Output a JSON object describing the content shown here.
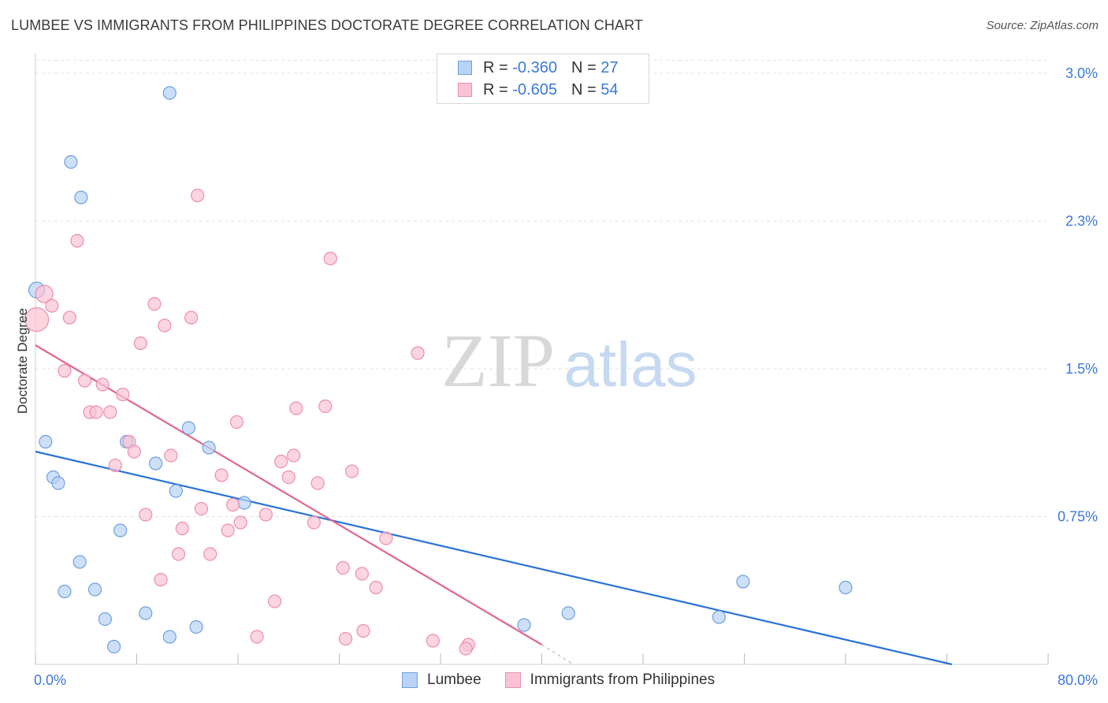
{
  "header": {
    "title": "LUMBEE VS IMMIGRANTS FROM PHILIPPINES DOCTORATE DEGREE CORRELATION CHART",
    "source": "Source: ZipAtlas.com"
  },
  "watermark": {
    "zip": "ZIP",
    "atlas": "atlas"
  },
  "legend": {
    "rows": [
      {
        "r_label": "R =",
        "r_value": "-0.360",
        "n_label": "N =",
        "n_value": "27"
      },
      {
        "r_label": "R =",
        "r_value": "-0.605",
        "n_label": "N =",
        "n_value": "54"
      }
    ]
  },
  "chart_data": {
    "type": "scatter",
    "title": "LUMBEE VS IMMIGRANTS FROM PHILIPPINES DOCTORATE DEGREE CORRELATION CHART",
    "xlabel": "",
    "ylabel": "Doctorate Degree",
    "xlim": [
      0,
      80
    ],
    "ylim": [
      0,
      3.1
    ],
    "x_tick_labels": [
      "0.0%",
      "80.0%"
    ],
    "y_ticks": [
      0.75,
      1.5,
      2.25,
      3.0
    ],
    "y_tick_labels": [
      "0.75%",
      "1.5%",
      "2.3%",
      "3.0%"
    ],
    "grid": true,
    "legend_position": "top-center",
    "colors": {
      "lumbee_fill": "#b8d3f5",
      "lumbee_stroke": "#6f9fe0",
      "lumbee_line": "#2a72d5",
      "phil_fill": "#fac3d3",
      "phil_stroke": "#ec8fae",
      "phil_line": "#e0668f"
    },
    "series": [
      {
        "name": "Lumbee",
        "points": [
          [
            10.6,
            2.9
          ],
          [
            2.8,
            2.55
          ],
          [
            3.6,
            2.37
          ],
          [
            0.1,
            1.9
          ],
          [
            0.8,
            1.13
          ],
          [
            1.4,
            0.95
          ],
          [
            1.8,
            0.92
          ],
          [
            7.2,
            1.13
          ],
          [
            9.5,
            1.02
          ],
          [
            12.1,
            1.2
          ],
          [
            13.7,
            1.1
          ],
          [
            11.1,
            0.88
          ],
          [
            16.5,
            0.82
          ],
          [
            6.7,
            0.68
          ],
          [
            3.5,
            0.52
          ],
          [
            2.3,
            0.37
          ],
          [
            4.7,
            0.38
          ],
          [
            5.5,
            0.23
          ],
          [
            8.7,
            0.26
          ],
          [
            12.7,
            0.19
          ],
          [
            10.6,
            0.14
          ],
          [
            6.2,
            0.09
          ],
          [
            38.6,
            0.2
          ],
          [
            42.1,
            0.26
          ],
          [
            54.0,
            0.24
          ],
          [
            55.9,
            0.42
          ],
          [
            64.0,
            0.39
          ]
        ],
        "trend": {
          "x": [
            0,
            72.4
          ],
          "y": [
            1.08,
            0.0
          ]
        }
      },
      {
        "name": "Immigrants from Philippines",
        "points": [
          [
            0.7,
            1.88
          ],
          [
            0.1,
            1.75
          ],
          [
            1.3,
            1.82
          ],
          [
            2.7,
            1.76
          ],
          [
            3.3,
            2.15
          ],
          [
            12.8,
            2.38
          ],
          [
            23.3,
            2.06
          ],
          [
            9.4,
            1.83
          ],
          [
            12.3,
            1.76
          ],
          [
            10.2,
            1.72
          ],
          [
            8.3,
            1.63
          ],
          [
            30.2,
            1.58
          ],
          [
            2.3,
            1.49
          ],
          [
            3.9,
            1.44
          ],
          [
            5.3,
            1.42
          ],
          [
            6.9,
            1.37
          ],
          [
            4.3,
            1.28
          ],
          [
            4.8,
            1.28
          ],
          [
            5.9,
            1.28
          ],
          [
            20.6,
            1.3
          ],
          [
            22.9,
            1.31
          ],
          [
            15.9,
            1.23
          ],
          [
            7.4,
            1.13
          ],
          [
            7.8,
            1.08
          ],
          [
            10.7,
            1.06
          ],
          [
            6.3,
            1.01
          ],
          [
            20.4,
            1.06
          ],
          [
            19.4,
            1.03
          ],
          [
            25.0,
            0.98
          ],
          [
            14.7,
            0.96
          ],
          [
            20.0,
            0.95
          ],
          [
            22.3,
            0.92
          ],
          [
            15.6,
            0.81
          ],
          [
            13.1,
            0.79
          ],
          [
            8.7,
            0.76
          ],
          [
            18.2,
            0.76
          ],
          [
            16.2,
            0.72
          ],
          [
            22.0,
            0.72
          ],
          [
            11.6,
            0.69
          ],
          [
            15.2,
            0.68
          ],
          [
            27.7,
            0.64
          ],
          [
            11.3,
            0.56
          ],
          [
            13.8,
            0.56
          ],
          [
            24.3,
            0.49
          ],
          [
            25.8,
            0.46
          ],
          [
            9.9,
            0.43
          ],
          [
            26.9,
            0.39
          ],
          [
            18.9,
            0.32
          ],
          [
            25.9,
            0.17
          ],
          [
            17.5,
            0.14
          ],
          [
            31.4,
            0.12
          ],
          [
            34.2,
            0.1
          ],
          [
            34.0,
            0.08
          ],
          [
            24.5,
            0.13
          ]
        ],
        "trend": {
          "x": [
            0,
            40.0
          ],
          "y": [
            1.62,
            0.1
          ]
        },
        "trend_dashed": {
          "x": [
            40.0,
            42.5
          ],
          "y": [
            0.1,
            0.0
          ]
        }
      }
    ]
  },
  "bottom_legend": {
    "items": [
      {
        "label": "Lumbee"
      },
      {
        "label": "Immigrants from Philippines"
      }
    ]
  }
}
